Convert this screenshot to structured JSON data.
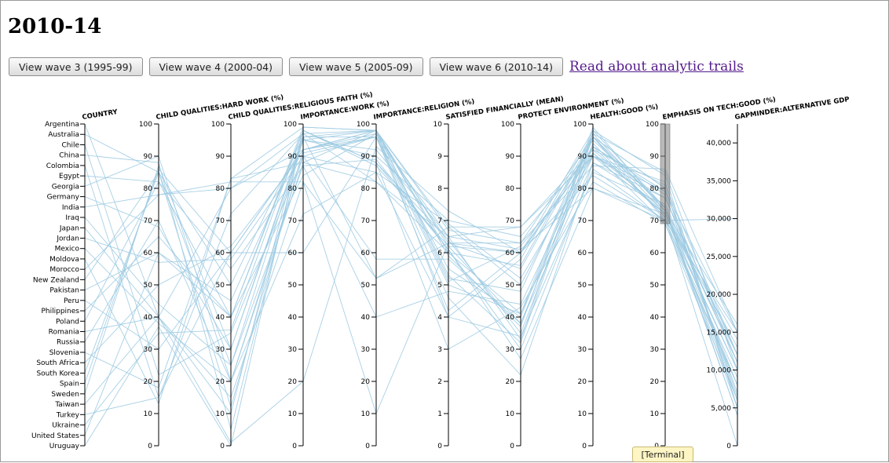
{
  "page": {
    "title": "2010-14",
    "buttons": [
      {
        "label": "View wave 3 (1995-99)"
      },
      {
        "label": "View wave 4 (2000-04)"
      },
      {
        "label": "View wave 5 (2005-09)"
      },
      {
        "label": "View wave 6 (2010-14)"
      }
    ],
    "link": "Read about analytic trails",
    "tooltip": "[Terminal]"
  },
  "colors": {
    "line": "#9fcbe2",
    "axis": "#000000",
    "brush": "#808080",
    "link": "#551a8b"
  },
  "chart_data": {
    "type": "parallel-coordinates",
    "countries": [
      "Argentina",
      "Australia",
      "Chile",
      "China",
      "Colombia",
      "Egypt",
      "Georgia",
      "Germany",
      "India",
      "Iraq",
      "Japan",
      "Jordan",
      "Mexico",
      "Moldova",
      "Morocco",
      "New Zealand",
      "Pakistan",
      "Peru",
      "Philippines",
      "Poland",
      "Romania",
      "Russia",
      "Slovenia",
      "South Africa",
      "South Korea",
      "Spain",
      "Sweden",
      "Taiwan",
      "Turkey",
      "Ukraine",
      "United States",
      "Uruguay"
    ],
    "axes": [
      {
        "name": "COUNTRY",
        "type": "categorical"
      },
      {
        "name": "CHILD QUALITIES:HARD WORK (%)",
        "range": [
          0,
          100
        ],
        "ticks": [
          "0",
          "10",
          "20",
          "30",
          "40",
          "50",
          "60",
          "70",
          "80",
          "90",
          "100"
        ]
      },
      {
        "name": "CHILD QUALITIES:RELIGIOUS FAITH (%)",
        "range": [
          0,
          100
        ],
        "ticks": [
          "0",
          "10",
          "20",
          "30",
          "40",
          "50",
          "60",
          "70",
          "80",
          "90",
          "100"
        ]
      },
      {
        "name": "IMPORTANCE:WORK (%)",
        "range": [
          0,
          100
        ],
        "ticks": [
          "0",
          "10",
          "20",
          "30",
          "40",
          "50",
          "60",
          "70",
          "80",
          "90",
          "100"
        ]
      },
      {
        "name": "IMPORTANCE:RELIGION (%)",
        "range": [
          0,
          100
        ],
        "ticks": [
          "0",
          "10",
          "20",
          "30",
          "40",
          "50",
          "60",
          "70",
          "80",
          "90",
          "100"
        ]
      },
      {
        "name": "SATISFIED FINANCIALLY (MEAN)",
        "range": [
          0,
          10
        ],
        "ticks": [
          "0",
          "1",
          "2",
          "3",
          "4",
          "5",
          "6",
          "7",
          "8",
          "9",
          "10"
        ]
      },
      {
        "name": "PROTECT ENVIRONMENT (%)",
        "range": [
          0,
          100
        ],
        "ticks": [
          "0",
          "10",
          "20",
          "30",
          "40",
          "50",
          "60",
          "70",
          "80",
          "90",
          "100"
        ]
      },
      {
        "name": "HEALTH:GOOD (%)",
        "range": [
          0,
          100
        ],
        "ticks": [
          "0",
          "10",
          "20",
          "30",
          "40",
          "50",
          "60",
          "70",
          "80",
          "90",
          "100"
        ]
      },
      {
        "name": "EMPHASIS ON TECH:GOOD (%)",
        "range": [
          0,
          100
        ],
        "ticks": [
          "0",
          "10",
          "20",
          "30",
          "40",
          "50",
          "60",
          "70",
          "80",
          "90",
          "100"
        ],
        "brush": [
          69,
          100
        ]
      },
      {
        "name": "GAPMINDER:ALTERNATIVE GDP",
        "range": [
          0,
          42500
        ],
        "ticks": [
          "0",
          "5,000",
          "10,000",
          "15,000",
          "20,000",
          "25,000",
          "30,000",
          "35,000",
          "40,000"
        ]
      }
    ],
    "rows": [
      [
        "Argentina",
        40,
        15,
        82,
        52,
        6.3,
        63,
        87,
        86,
        15000
      ],
      [
        "Australia",
        85,
        25,
        95,
        90,
        7.0,
        65,
        92,
        72,
        10000
      ],
      [
        "Chile",
        22,
        35,
        90,
        85,
        6.9,
        52,
        90,
        79,
        15000
      ],
      [
        "China",
        88,
        5,
        96,
        98,
        6.7,
        63,
        96,
        74,
        8000
      ],
      [
        "Colombia",
        15,
        72,
        97,
        98,
        6.2,
        60,
        93,
        79,
        11000
      ],
      [
        "Egypt",
        82,
        40,
        84,
        97,
        5.1,
        62,
        90,
        82,
        5000
      ],
      [
        "Georgia",
        90,
        20,
        72,
        85,
        4.0,
        34,
        85,
        75,
        11000
      ],
      [
        "Germany",
        68,
        30,
        96,
        96,
        6.5,
        68,
        92,
        81,
        12000
      ],
      [
        "India",
        78,
        80,
        92,
        98,
        6.0,
        56,
        96,
        80,
        6000
      ],
      [
        "Iraq",
        44,
        25,
        87,
        40,
        4.8,
        44,
        91,
        73,
        16000
      ],
      [
        "Japan",
        40,
        10,
        98,
        87,
        6.2,
        38,
        88,
        77,
        12000
      ],
      [
        "Jordan",
        57,
        58,
        90,
        96,
        5.0,
        41,
        97,
        73,
        6000
      ],
      [
        "Mexico",
        38,
        20,
        88,
        82,
        6.5,
        61,
        80,
        70,
        9000
      ],
      [
        "Moldova",
        13,
        83,
        88,
        98,
        5.3,
        32,
        96,
        72,
        13000
      ],
      [
        "Morocco",
        78,
        82,
        82,
        10,
        6.3,
        60,
        91,
        69,
        6000
      ],
      [
        "New Zealand",
        85,
        50,
        96,
        52,
        6.8,
        68,
        90,
        72,
        14000
      ],
      [
        "Pakistan",
        60,
        45,
        95,
        92,
        6.5,
        33,
        98,
        84,
        5000
      ],
      [
        "Peru",
        30,
        60,
        92,
        96,
        4.2,
        60,
        84,
        70,
        8000
      ],
      [
        "Philippines",
        65,
        40,
        99,
        98,
        4.0,
        58,
        97,
        85,
        10000
      ],
      [
        "Poland",
        82,
        55,
        87,
        89,
        6.1,
        30,
        86,
        70,
        15000
      ],
      [
        "Romania",
        40,
        80,
        97,
        82,
        6.0,
        41,
        90,
        77,
        12000
      ],
      [
        "Russia",
        70,
        20,
        90,
        58,
        5.8,
        38,
        94,
        71,
        10000
      ],
      [
        "Slovenia",
        18,
        83,
        99,
        98,
        5.2,
        48,
        96,
        80,
        6500
      ],
      [
        "South Africa",
        50,
        62,
        91,
        96,
        4.6,
        22,
        88,
        74,
        4000
      ],
      [
        "South Korea",
        85,
        12,
        92,
        97,
        6.3,
        55,
        95,
        74,
        5000
      ],
      [
        "Spain",
        86,
        60,
        60,
        96,
        5.5,
        40,
        96,
        70,
        30000
      ],
      [
        "Sweden",
        87,
        30,
        95,
        98,
        6.8,
        50,
        93,
        78,
        7000
      ],
      [
        "Taiwan",
        40,
        1,
        20,
        93,
        7.3,
        60,
        98,
        74,
        11000
      ],
      [
        "Turkey",
        15,
        60,
        92,
        98,
        5.9,
        37,
        99,
        73,
        4000
      ],
      [
        "Ukraine",
        35,
        36,
        98,
        88,
        3.0,
        43,
        82,
        69,
        8000
      ],
      [
        "United States",
        60,
        40,
        98,
        88,
        6.4,
        35,
        93,
        71,
        0
      ],
      [
        "Uruguay",
        37,
        0,
        98,
        88,
        6.1,
        27,
        80,
        72,
        12000
      ]
    ]
  }
}
